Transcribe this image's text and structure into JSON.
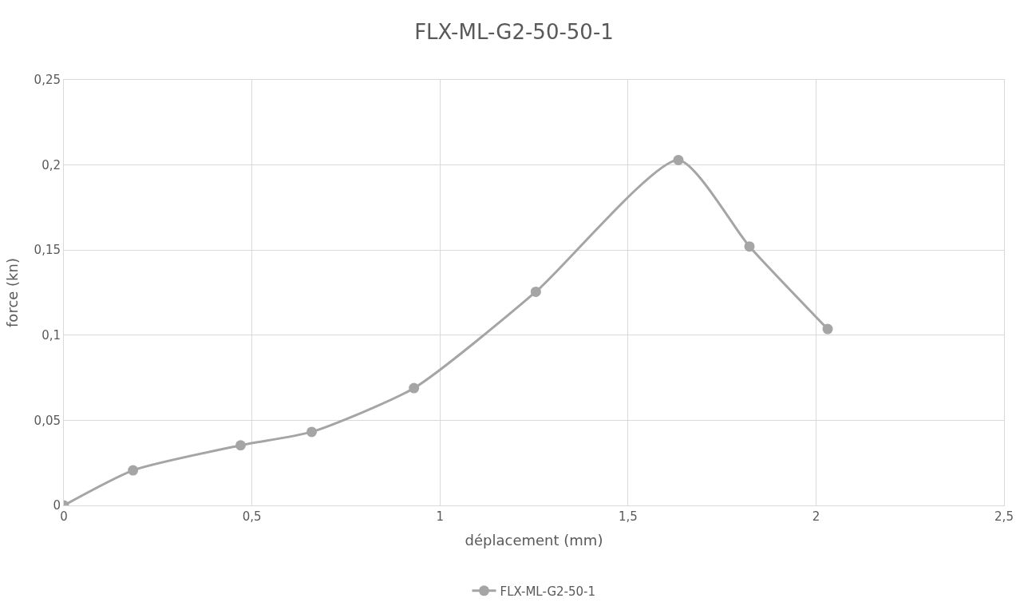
{
  "chart_data": {
    "type": "line",
    "title": "FLX-ML-G2-50-50-1",
    "xlabel": "déplacement (mm)",
    "ylabel": "force (kn)",
    "series": [
      {
        "name": "FLX-ML-G2-50-1",
        "color": "#a5a5a5",
        "x": [
          0,
          0.184,
          0.47,
          0.659,
          0.931,
          1.255,
          1.634,
          1.823,
          2.031
        ],
        "values": [
          0,
          0.0206,
          0.0353,
          0.0432,
          0.0689,
          0.1255,
          0.2029,
          0.1521,
          0.1036
        ]
      }
    ],
    "xlim": [
      0,
      2.5
    ],
    "xticks": [
      {
        "value": 0,
        "label": "0"
      },
      {
        "value": 0.5,
        "label": "0,5"
      },
      {
        "value": 1,
        "label": "1"
      },
      {
        "value": 1.5,
        "label": "1,5"
      },
      {
        "value": 2,
        "label": "2"
      },
      {
        "value": 2.5,
        "label": "2,5"
      }
    ],
    "ylim": [
      0,
      0.25
    ],
    "yticks": [
      {
        "value": 0,
        "label": "0"
      },
      {
        "value": 0.05,
        "label": "0,05"
      },
      {
        "value": 0.1,
        "label": "0,1"
      },
      {
        "value": 0.15,
        "label": "0,15"
      },
      {
        "value": 0.2,
        "label": "0,2"
      },
      {
        "value": 0.25,
        "label": "0,25"
      }
    ],
    "grid": true,
    "legend": "bottom",
    "marker": "circle",
    "line_style": "solid"
  }
}
